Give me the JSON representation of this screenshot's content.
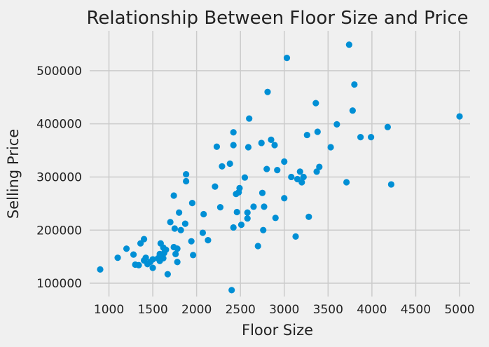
{
  "chart_data": {
    "type": "scatter",
    "title": "Relationship Between Floor Size and Price",
    "xlabel": "Floor Size",
    "ylabel": "Selling Price",
    "xlim": [
      780,
      5120
    ],
    "ylim": [
      75000,
      575000
    ],
    "x_ticks": [
      1000,
      1500,
      2000,
      2500,
      3000,
      3500,
      4000,
      4500,
      5000
    ],
    "y_ticks": [
      100000,
      200000,
      300000,
      400000,
      500000
    ],
    "grid": true,
    "marker_color": "#008fd5",
    "points": [
      [
        900,
        126000
      ],
      [
        1100,
        148000
      ],
      [
        1200,
        165000
      ],
      [
        1280,
        154000
      ],
      [
        1300,
        135000
      ],
      [
        1340,
        134000
      ],
      [
        1360,
        175000
      ],
      [
        1400,
        183000
      ],
      [
        1400,
        143000
      ],
      [
        1420,
        148000
      ],
      [
        1440,
        136000
      ],
      [
        1470,
        140000
      ],
      [
        1500,
        145000
      ],
      [
        1500,
        129000
      ],
      [
        1560,
        147000
      ],
      [
        1580,
        155000
      ],
      [
        1580,
        142000
      ],
      [
        1590,
        175000
      ],
      [
        1600,
        148000
      ],
      [
        1600,
        153000
      ],
      [
        1620,
        147000
      ],
      [
        1620,
        167000
      ],
      [
        1630,
        157000
      ],
      [
        1650,
        163000
      ],
      [
        1670,
        117000
      ],
      [
        1700,
        215000
      ],
      [
        1740,
        168000
      ],
      [
        1740,
        265000
      ],
      [
        1750,
        203000
      ],
      [
        1760,
        155000
      ],
      [
        1780,
        165000
      ],
      [
        1780,
        140000
      ],
      [
        1800,
        233000
      ],
      [
        1820,
        200000
      ],
      [
        1870,
        212000
      ],
      [
        1880,
        305000
      ],
      [
        1880,
        292000
      ],
      [
        1940,
        179000
      ],
      [
        1950,
        251000
      ],
      [
        1960,
        153000
      ],
      [
        2070,
        195000
      ],
      [
        2080,
        230000
      ],
      [
        2130,
        181000
      ],
      [
        2210,
        282000
      ],
      [
        2230,
        357000
      ],
      [
        2270,
        243000
      ],
      [
        2290,
        320000
      ],
      [
        2380,
        325000
      ],
      [
        2400,
        87000
      ],
      [
        2420,
        205000
      ],
      [
        2420,
        384000
      ],
      [
        2420,
        360000
      ],
      [
        2450,
        268000
      ],
      [
        2460,
        234000
      ],
      [
        2480,
        271000
      ],
      [
        2490,
        279000
      ],
      [
        2510,
        210000
      ],
      [
        2550,
        299000
      ],
      [
        2580,
        233000
      ],
      [
        2580,
        222000
      ],
      [
        2590,
        356000
      ],
      [
        2600,
        410000
      ],
      [
        2650,
        244000
      ],
      [
        2700,
        170000
      ],
      [
        2740,
        364000
      ],
      [
        2750,
        270000
      ],
      [
        2760,
        200000
      ],
      [
        2770,
        244000
      ],
      [
        2800,
        315000
      ],
      [
        2810,
        460000
      ],
      [
        2850,
        370000
      ],
      [
        2890,
        360000
      ],
      [
        2900,
        223000
      ],
      [
        2920,
        313000
      ],
      [
        3000,
        329000
      ],
      [
        3000,
        260000
      ],
      [
        3030,
        524000
      ],
      [
        3080,
        300000
      ],
      [
        3130,
        188000
      ],
      [
        3150,
        296000
      ],
      [
        3180,
        310000
      ],
      [
        3200,
        290000
      ],
      [
        3220,
        300000
      ],
      [
        3260,
        379000
      ],
      [
        3280,
        225000
      ],
      [
        3360,
        439000
      ],
      [
        3370,
        310000
      ],
      [
        3380,
        385000
      ],
      [
        3400,
        319000
      ],
      [
        3530,
        356000
      ],
      [
        3600,
        399000
      ],
      [
        3710,
        290000
      ],
      [
        3740,
        549000
      ],
      [
        3780,
        425000
      ],
      [
        3800,
        474000
      ],
      [
        3870,
        375000
      ],
      [
        3990,
        375000
      ],
      [
        4180,
        394000
      ],
      [
        4220,
        286000
      ],
      [
        5000,
        414000
      ]
    ]
  }
}
